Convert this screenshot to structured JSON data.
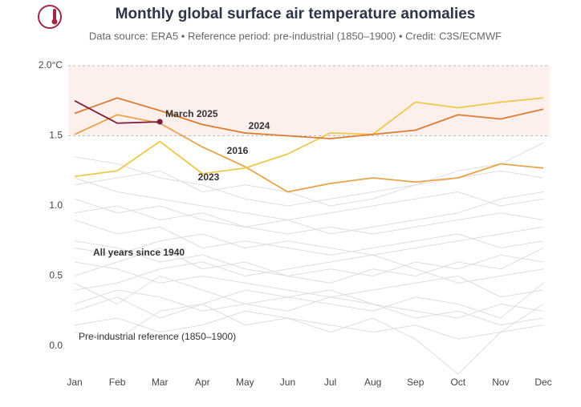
{
  "chart_data": {
    "type": "line",
    "title": "Monthly global surface air temperature anomalies",
    "subtitle": "Data source: ERA5 • Reference period: pre-industrial (1850–1900) • Credit: C3S/ECMWF",
    "categories": [
      "Jan",
      "Feb",
      "Mar",
      "Apr",
      "May",
      "Jun",
      "Jul",
      "Aug",
      "Sep",
      "Oct",
      "Nov",
      "Dec"
    ],
    "ylim": [
      -0.25,
      2.0
    ],
    "yticks": [
      {
        "value": 0,
        "label": "0.0"
      },
      0.5,
      {
        "value": 1,
        "label": "1.0"
      },
      1.5,
      {
        "value": 2,
        "label": "2.0°C"
      }
    ],
    "band": [
      1.5,
      2.0
    ],
    "band_color": "#fdf0ec",
    "background_label": "All years since 1940",
    "reference_label": "Pre-industrial reference (1850–1900)",
    "background_color": "#e4dcdc",
    "background_series": [
      [
        0.25,
        0.35,
        0.2,
        0.3,
        0.15,
        0.2,
        0.1,
        0.2,
        0.05,
        -0.2,
        0.1,
        0.3
      ],
      [
        0.1,
        0.05,
        0.25,
        0.3,
        0.4,
        0.35,
        0.3,
        0.25,
        0.35,
        0.3,
        0.2,
        0.45
      ],
      [
        0.45,
        0.3,
        0.5,
        0.4,
        0.3,
        0.35,
        0.4,
        0.3,
        0.25,
        0.2,
        0.3,
        0.25
      ],
      [
        0.6,
        0.55,
        0.45,
        0.5,
        0.45,
        0.4,
        0.35,
        0.4,
        0.45,
        0.5,
        0.35,
        0.4
      ],
      [
        0.3,
        0.4,
        0.35,
        0.25,
        0.3,
        0.25,
        0.35,
        0.3,
        0.2,
        0.25,
        0.15,
        0.2
      ],
      [
        0.75,
        0.7,
        0.6,
        0.65,
        0.55,
        0.5,
        0.55,
        0.5,
        0.6,
        0.55,
        0.65,
        0.6
      ],
      [
        0.9,
        0.8,
        0.85,
        0.7,
        0.75,
        0.7,
        0.65,
        0.7,
        0.75,
        0.8,
        0.7,
        0.75
      ],
      [
        1.05,
        0.95,
        1.0,
        0.9,
        0.85,
        0.8,
        0.85,
        0.8,
        0.85,
        0.9,
        0.95,
        0.9
      ],
      [
        1.2,
        1.1,
        1.05,
        1.0,
        0.95,
        0.9,
        0.95,
        1.0,
        1.05,
        1.1,
        1.0,
        1.05
      ],
      [
        1.35,
        1.3,
        1.2,
        1.15,
        1.05,
        1.0,
        1.05,
        1.1,
        1.15,
        1.2,
        1.25,
        1.2
      ],
      [
        0.5,
        0.6,
        0.7,
        0.55,
        0.6,
        0.5,
        0.45,
        0.55,
        0.5,
        0.6,
        0.55,
        0.7
      ],
      [
        0.15,
        0.2,
        0.1,
        0.15,
        0.25,
        0.2,
        0.15,
        0.1,
        0.15,
        0.05,
        0.1,
        0.15
      ],
      [
        0.95,
        1.0,
        0.9,
        0.95,
        0.85,
        0.9,
        0.8,
        0.85,
        0.9,
        0.95,
        1.05,
        1.1
      ],
      [
        0.4,
        0.45,
        0.55,
        0.6,
        0.5,
        0.55,
        0.6,
        0.65,
        0.55,
        0.45,
        0.5,
        0.55
      ],
      [
        1.15,
        1.2,
        1.25,
        1.1,
        1.15,
        1.1,
        1.0,
        1.05,
        1.15,
        1.25,
        1.3,
        1.45
      ],
      [
        0.7,
        0.65,
        0.75,
        0.8,
        0.7,
        0.75,
        0.7,
        0.65,
        0.7,
        0.75,
        0.8,
        0.85
      ]
    ],
    "series": [
      {
        "name": "2016",
        "color": "#e8a449",
        "values": [
          1.51,
          1.65,
          1.59,
          1.42,
          1.28,
          1.1,
          1.16,
          1.2,
          1.17,
          1.2,
          1.3,
          1.27
        ]
      },
      {
        "name": "2023",
        "color": "#f0c84a",
        "values": [
          1.21,
          1.25,
          1.46,
          1.23,
          1.27,
          1.37,
          1.52,
          1.51,
          1.74,
          1.7,
          1.74,
          1.77
        ]
      },
      {
        "name": "2024",
        "color": "#dc7c32",
        "values": [
          1.66,
          1.77,
          1.68,
          1.58,
          1.52,
          1.5,
          1.48,
          1.51,
          1.54,
          1.65,
          1.62,
          1.69
        ]
      },
      {
        "name": "March 2025",
        "color": "#7a1c3b",
        "values": [
          1.75,
          1.59,
          1.6,
          null,
          null,
          null,
          null,
          null,
          null,
          null,
          null,
          null
        ]
      }
    ]
  }
}
